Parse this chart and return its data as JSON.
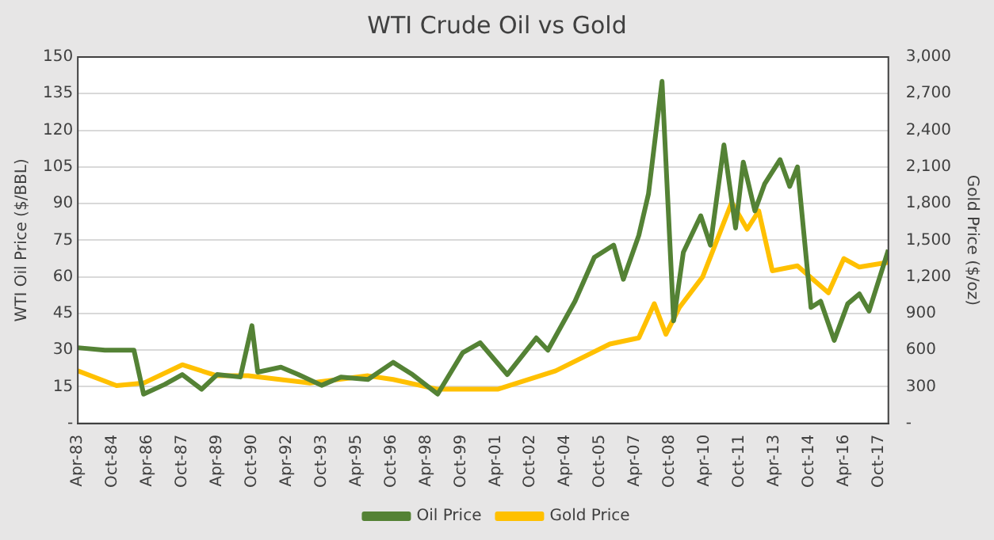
{
  "chart_data": {
    "type": "line",
    "title": "WTI Crude Oil vs Gold",
    "ylabel": "WTI Oil Price ($/BBL)",
    "y2label": "Gold Price ($/oz)",
    "xlim": [
      "1983-04",
      "2018-03"
    ],
    "xticks": [
      {
        "value": "1983-04",
        "label": "Apr-83"
      },
      {
        "value": "1984-10",
        "label": "Oct-84"
      },
      {
        "value": "1986-04",
        "label": "Apr-86"
      },
      {
        "value": "1987-10",
        "label": "Oct-87"
      },
      {
        "value": "1989-04",
        "label": "Apr-89"
      },
      {
        "value": "1990-10",
        "label": "Oct-90"
      },
      {
        "value": "1992-04",
        "label": "Apr-92"
      },
      {
        "value": "1993-10",
        "label": "Oct-93"
      },
      {
        "value": "1995-04",
        "label": "Apr-95"
      },
      {
        "value": "1996-10",
        "label": "Oct-96"
      },
      {
        "value": "1998-04",
        "label": "Apr-98"
      },
      {
        "value": "1999-10",
        "label": "Oct-99"
      },
      {
        "value": "2001-04",
        "label": "Apr-01"
      },
      {
        "value": "2002-10",
        "label": "Oct-02"
      },
      {
        "value": "2004-04",
        "label": "Apr-04"
      },
      {
        "value": "2005-10",
        "label": "Oct-05"
      },
      {
        "value": "2007-04",
        "label": "Apr-07"
      },
      {
        "value": "2008-10",
        "label": "Oct-08"
      },
      {
        "value": "2010-04",
        "label": "Apr-10"
      },
      {
        "value": "2011-10",
        "label": "Oct-11"
      },
      {
        "value": "2013-04",
        "label": "Apr-13"
      },
      {
        "value": "2014-10",
        "label": "Oct-14"
      },
      {
        "value": "2016-04",
        "label": "Apr-16"
      },
      {
        "value": "2017-10",
        "label": "Oct-17"
      }
    ],
    "ylim": [
      0,
      150
    ],
    "yticks": [
      {
        "value": 0,
        "label": "-"
      },
      15,
      30,
      45,
      60,
      75,
      90,
      105,
      120,
      135,
      150
    ],
    "y2lim": [
      0,
      3000
    ],
    "y2ticks": [
      {
        "value": 0,
        "label": "-"
      },
      300,
      600,
      900,
      {
        "value": 1200,
        "label": "1,200"
      },
      {
        "value": 1500,
        "label": "1,500"
      },
      {
        "value": 1800,
        "label": "1,800"
      },
      {
        "value": 2100,
        "label": "2,100"
      },
      {
        "value": 2400,
        "label": "2,400"
      },
      {
        "value": 2700,
        "label": "2,700"
      },
      {
        "value": 3000,
        "label": "3,000"
      }
    ],
    "grid": "y",
    "legend": "bottom",
    "marker": "none",
    "line_style": "solid",
    "series": [
      {
        "name": "Oil Price",
        "color": "#548235",
        "x": [
          "1983-04",
          "1984-06",
          "1985-09",
          "1986-02",
          "1987-01",
          "1987-10",
          "1988-08",
          "1989-04",
          "1990-04",
          "1990-10",
          "1991-01",
          "1992-01",
          "1992-10",
          "1993-10",
          "1994-08",
          "1995-10",
          "1996-11",
          "1997-09",
          "1998-10",
          "1999-11",
          "2000-08",
          "2001-10",
          "2003-01",
          "2003-07",
          "2004-09",
          "2005-07",
          "2006-05",
          "2006-10",
          "2007-06",
          "2007-11",
          "2008-06",
          "2008-12",
          "2009-05",
          "2010-02",
          "2010-07",
          "2011-02",
          "2011-08",
          "2011-12",
          "2012-06",
          "2012-11",
          "2013-07",
          "2013-12",
          "2014-04",
          "2014-11",
          "2015-04",
          "2015-11",
          "2016-06",
          "2016-12",
          "2017-05",
          "2018-03"
        ],
        "values": [
          31,
          30,
          30,
          12,
          16,
          20,
          14,
          20,
          19,
          40,
          21,
          23,
          20,
          15.6,
          19,
          18,
          25,
          20,
          12,
          29,
          33,
          20,
          35,
          30,
          50,
          68,
          73,
          59,
          77,
          94,
          140,
          42,
          70,
          85,
          73,
          114,
          80,
          107,
          87,
          98,
          108,
          97,
          105,
          47.5,
          50,
          34,
          49,
          53,
          46,
          71
        ]
      },
      {
        "name": "Gold Price",
        "color": "#ffc000",
        "axis": "y2",
        "x": [
          "1983-04",
          "1984-12",
          "1986-02",
          "1987-10",
          "1989-04",
          "1990-08",
          "1993-04",
          "1995-10",
          "1996-11",
          "1998-10",
          "2001-05",
          "2003-11",
          "2006-03",
          "2007-06",
          "2008-02",
          "2008-08",
          "2009-03",
          "2010-03",
          "2011-06",
          "2012-02",
          "2012-08",
          "2013-03",
          "2014-04",
          "2015-08",
          "2016-04",
          "2016-12",
          "2018-03"
        ],
        "values": [
          430,
          310,
          330,
          480,
          390,
          390,
          330,
          390,
          360,
          280,
          280,
          430,
          650,
          700,
          980,
          730,
          950,
          1200,
          1810,
          1590,
          1740,
          1250,
          1290,
          1070,
          1350,
          1280,
          1320
        ]
      }
    ]
  }
}
